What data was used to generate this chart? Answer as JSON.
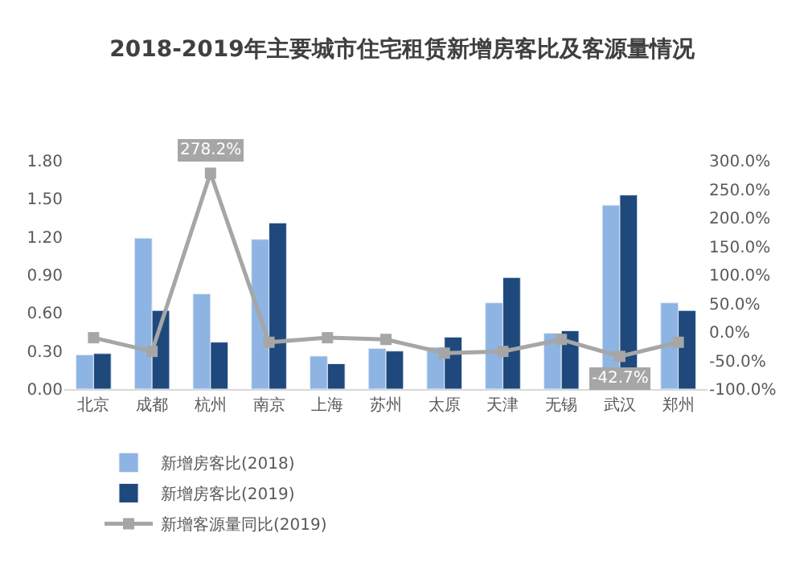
{
  "chart_data": {
    "type": "bar",
    "title": "2018-2019年主要城市住宅租赁新增房客比及客源量情况",
    "categories": [
      "北京",
      "成都",
      "杭州",
      "南京",
      "上海",
      "苏州",
      "太原",
      "天津",
      "无锡",
      "武汉",
      "郑州"
    ],
    "series": [
      {
        "name": "新增房客比(2018)",
        "color": "#8eb4e3",
        "values": [
          0.27,
          1.19,
          0.75,
          1.18,
          0.26,
          0.32,
          0.33,
          0.68,
          0.44,
          1.45,
          0.68
        ]
      },
      {
        "name": "新增房客比(2019)",
        "color": "#1f497d",
        "values": [
          0.28,
          0.62,
          0.37,
          1.31,
          0.2,
          0.3,
          0.41,
          0.88,
          0.46,
          1.53,
          0.62
        ]
      },
      {
        "name": "新增客源量同比(2019)",
        "color": "#a6a6a6",
        "type": "line",
        "axis": "y2",
        "marker": "square",
        "values": [
          -10,
          -34,
          278.2,
          -18,
          -10,
          -13,
          -37,
          -34,
          -13,
          -42.7,
          -18
        ],
        "value_labels": [
          null,
          null,
          "278.2%",
          null,
          null,
          null,
          null,
          null,
          null,
          "-42.7%",
          null
        ]
      }
    ],
    "ylim": [
      0,
      1.8
    ],
    "yticks": [
      {
        "value": 0,
        "label": "0.00"
      },
      {
        "value": 0.3,
        "label": "0.30"
      },
      {
        "value": 0.6,
        "label": "0.60"
      },
      {
        "value": 0.9,
        "label": "0.90"
      },
      {
        "value": 1.2,
        "label": "1.20"
      },
      {
        "value": 1.5,
        "label": "1.50"
      },
      {
        "value": 1.8,
        "label": "1.80"
      }
    ],
    "y2lim": [
      -100,
      300
    ],
    "y2ticks": [
      {
        "value": -100,
        "label": "-100.0%"
      },
      {
        "value": -50,
        "label": "-50.0%"
      },
      {
        "value": 0,
        "label": "0.0%"
      },
      {
        "value": 50,
        "label": "50.0%"
      },
      {
        "value": 100,
        "label": "100.0%"
      },
      {
        "value": 150,
        "label": "150.0%"
      },
      {
        "value": 200,
        "label": "200.0%"
      },
      {
        "value": 250,
        "label": "250.0%"
      },
      {
        "value": 300,
        "label": "300.0%"
      }
    ],
    "grid": false,
    "legend": "bottom"
  }
}
